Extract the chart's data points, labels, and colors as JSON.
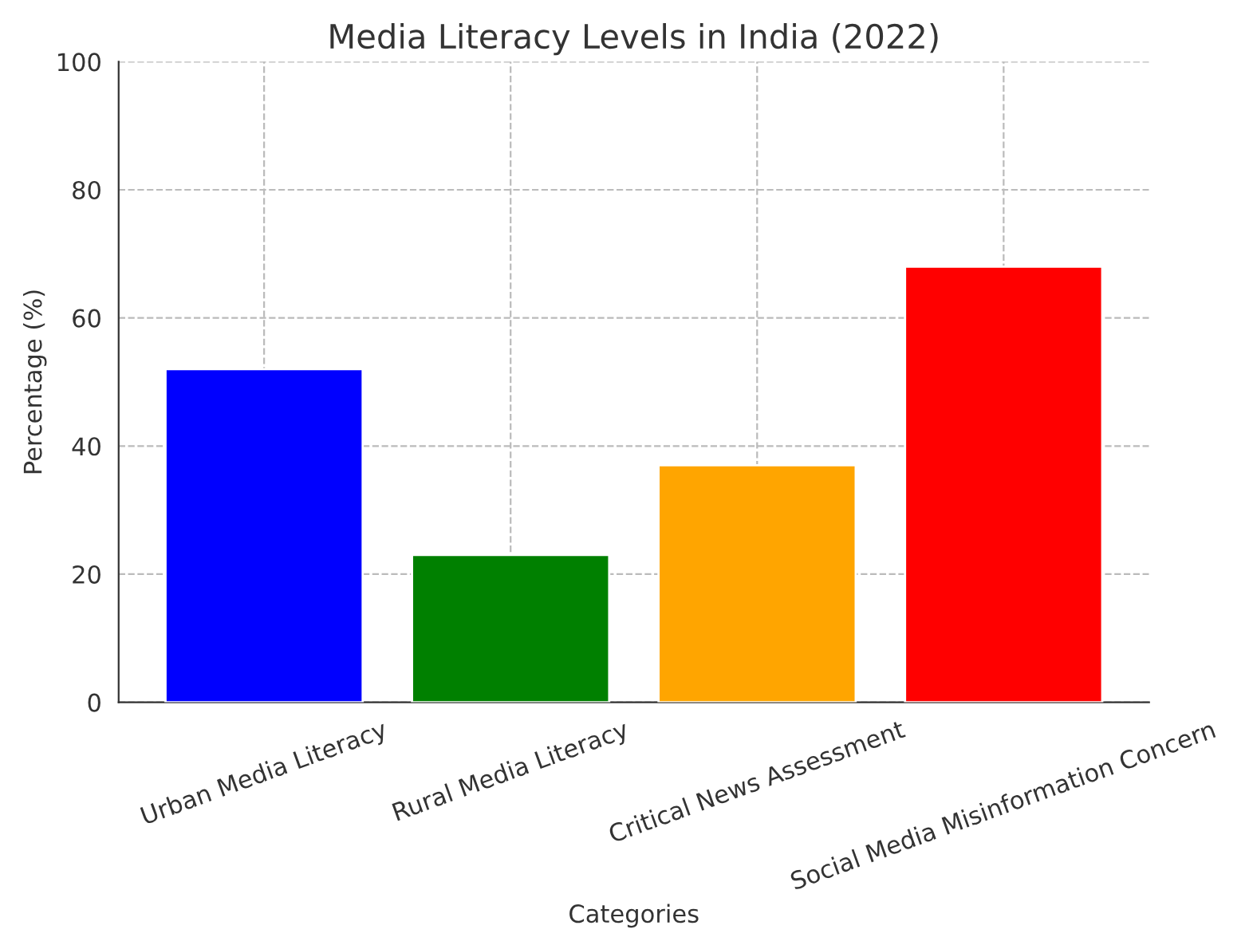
{
  "chart_data": {
    "type": "bar",
    "title": "Media Literacy Levels in India (2022)",
    "xlabel": "Categories",
    "ylabel": "Percentage (%)",
    "categories": [
      "Urban Media Literacy",
      "Rural Media Literacy",
      "Critical News Assessment",
      "Social Media Misinformation Concern"
    ],
    "values": [
      52,
      23,
      37,
      68
    ],
    "colors": [
      "#0000ff",
      "#008000",
      "#ffa500",
      "#ff0000"
    ],
    "ylim": [
      0,
      100
    ],
    "yticks": [
      0,
      20,
      40,
      60,
      80,
      100
    ],
    "grid": true,
    "line_style": "dashed"
  }
}
